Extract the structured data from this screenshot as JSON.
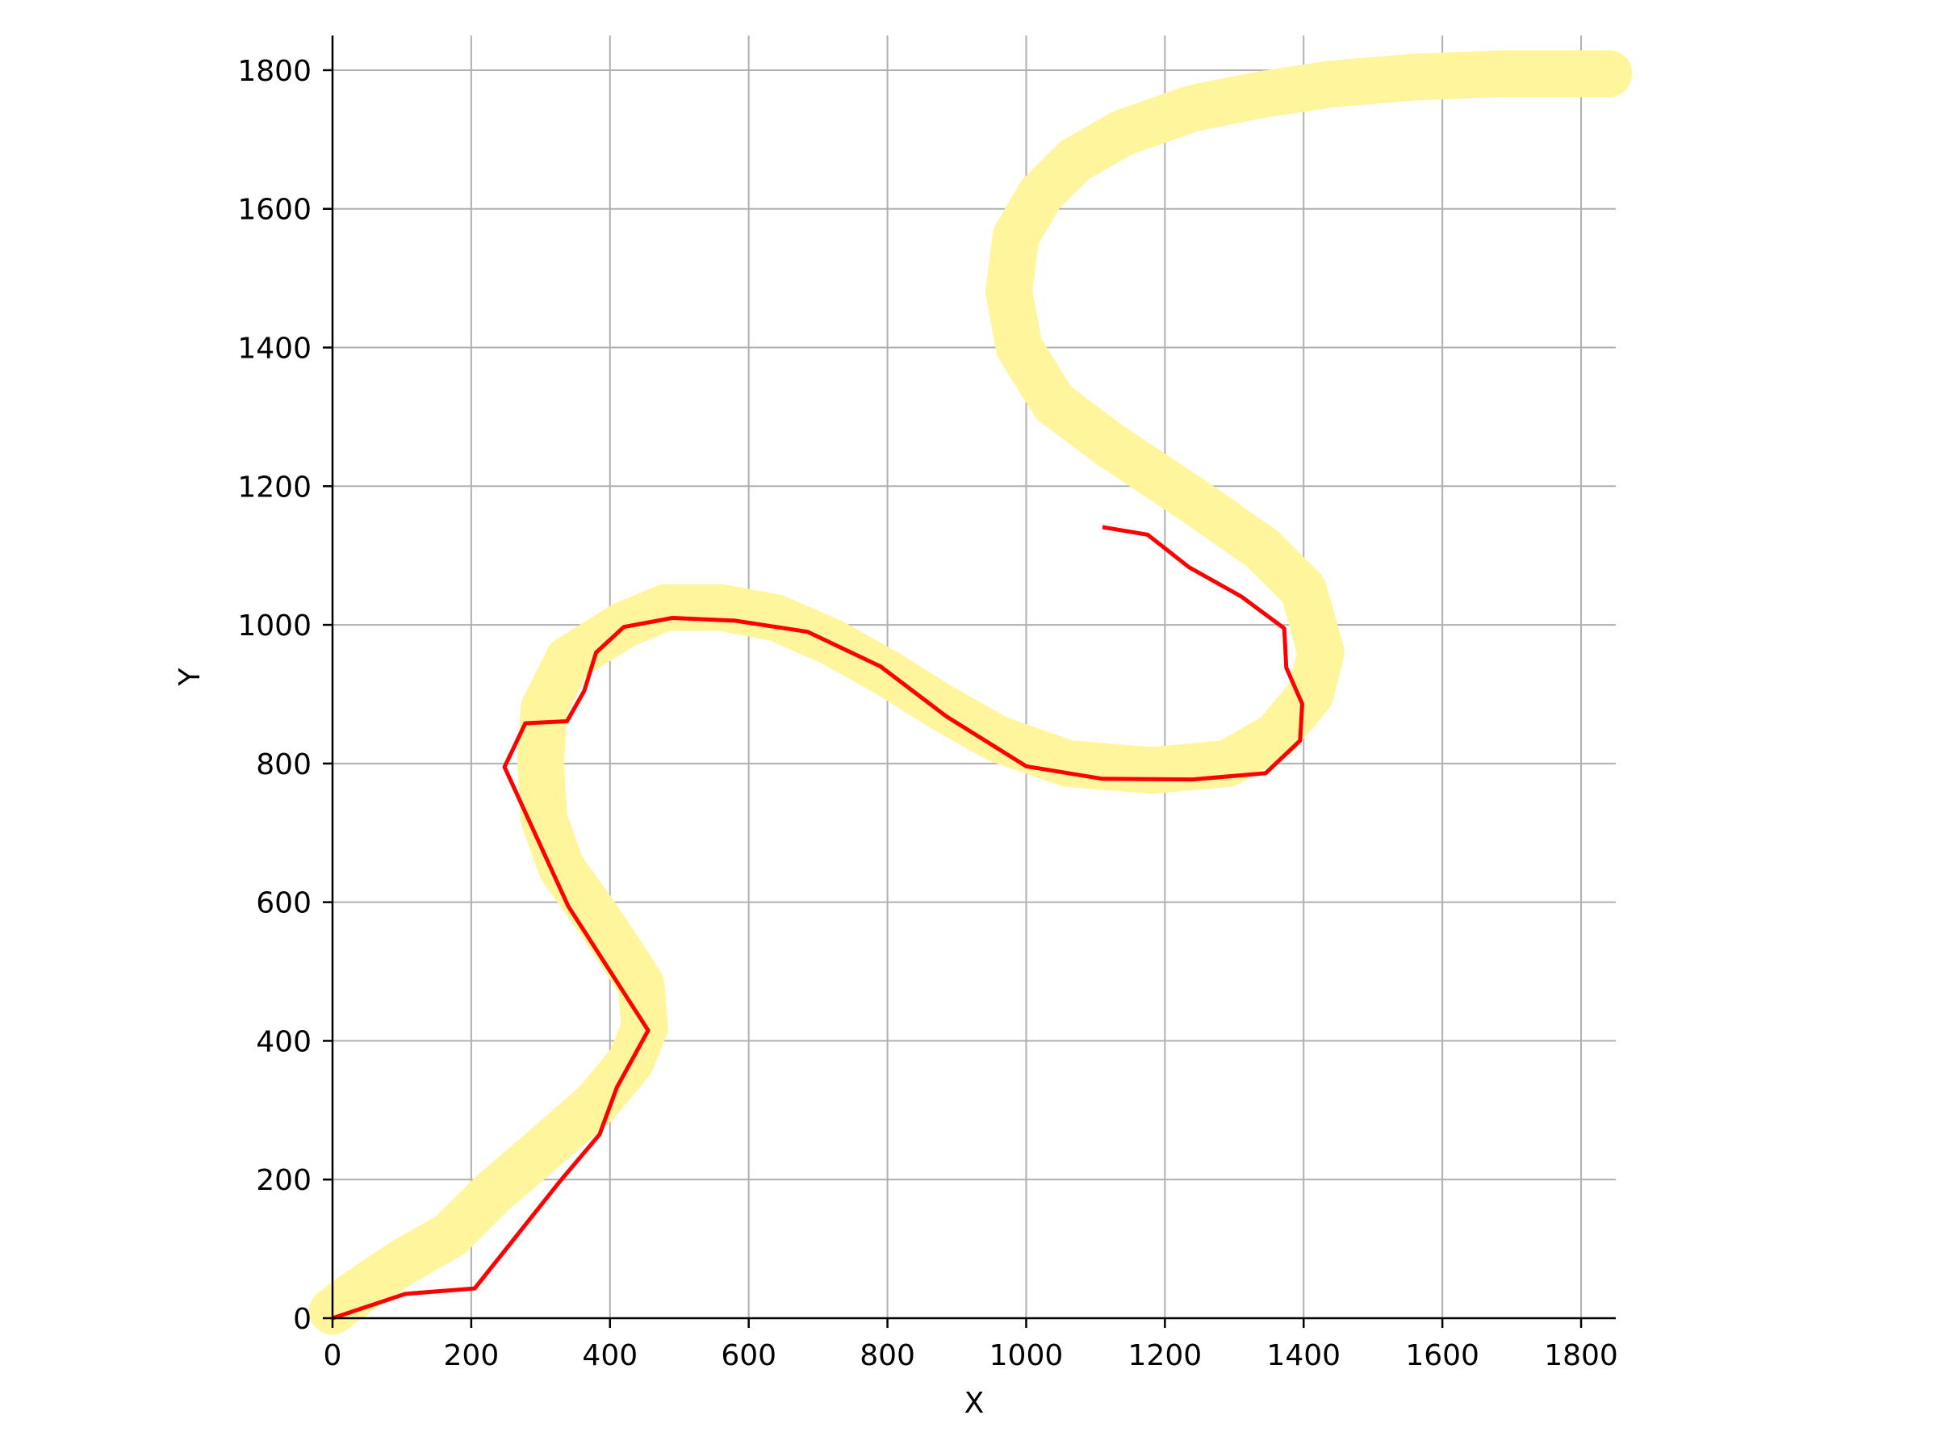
{
  "chart_data": {
    "type": "line",
    "title": "",
    "xlabel": "X",
    "ylabel": "Y",
    "xlim": [
      0,
      1850
    ],
    "ylim": [
      0,
      1850
    ],
    "x_ticks": [
      0,
      200,
      400,
      600,
      800,
      1000,
      1200,
      1400,
      1600,
      1800
    ],
    "y_ticks": [
      0,
      200,
      400,
      600,
      800,
      1000,
      1200,
      1400,
      1600,
      1800
    ],
    "grid": true,
    "legend": "none",
    "series": [
      {
        "color": "#fff59d",
        "style": "thick-band",
        "x": [
          0,
          40,
          100,
          170,
          230,
          300,
          380,
          430,
          450,
          445,
          420,
          380,
          330,
          305,
          300,
          305,
          340,
          420,
          480,
          560,
          640,
          720,
          800,
          880,
          960,
          1060,
          1180,
          1290,
          1360,
          1410,
          1425,
          1400,
          1340,
          1240,
          1120,
          1040,
          990,
          975,
          985,
          1020,
          1070,
          1140,
          1240,
          1340,
          1440,
          1560,
          1690,
          1840
        ],
        "y": [
          10,
          40,
          80,
          120,
          180,
          240,
          310,
          370,
          420,
          480,
          520,
          580,
          650,
          720,
          800,
          880,
          950,
          1000,
          1025,
          1025,
          1010,
          975,
          930,
          880,
          835,
          800,
          790,
          800,
          840,
          900,
          960,
          1050,
          1110,
          1180,
          1260,
          1320,
          1400,
          1480,
          1560,
          1620,
          1670,
          1710,
          1745,
          1765,
          1780,
          1790,
          1795,
          1795
        ]
      },
      {
        "color": "#ff0000",
        "style": "line",
        "x": [
          0,
          105,
          205,
          330,
          385,
          410,
          455,
          340,
          248,
          278,
          338,
          363,
          380,
          420,
          490,
          580,
          685,
          790,
          885,
          1000,
          1110,
          1240,
          1345,
          1395,
          1398,
          1375,
          1372,
          1310,
          1235,
          1175,
          1110
        ],
        "y": [
          0,
          35,
          43,
          200,
          265,
          333,
          415,
          594,
          795,
          858,
          861,
          905,
          960,
          997,
          1010,
          1006,
          990,
          940,
          868,
          796,
          778,
          777,
          786,
          833,
          886,
          938,
          995,
          1041,
          1083,
          1130,
          1141
        ]
      }
    ]
  }
}
